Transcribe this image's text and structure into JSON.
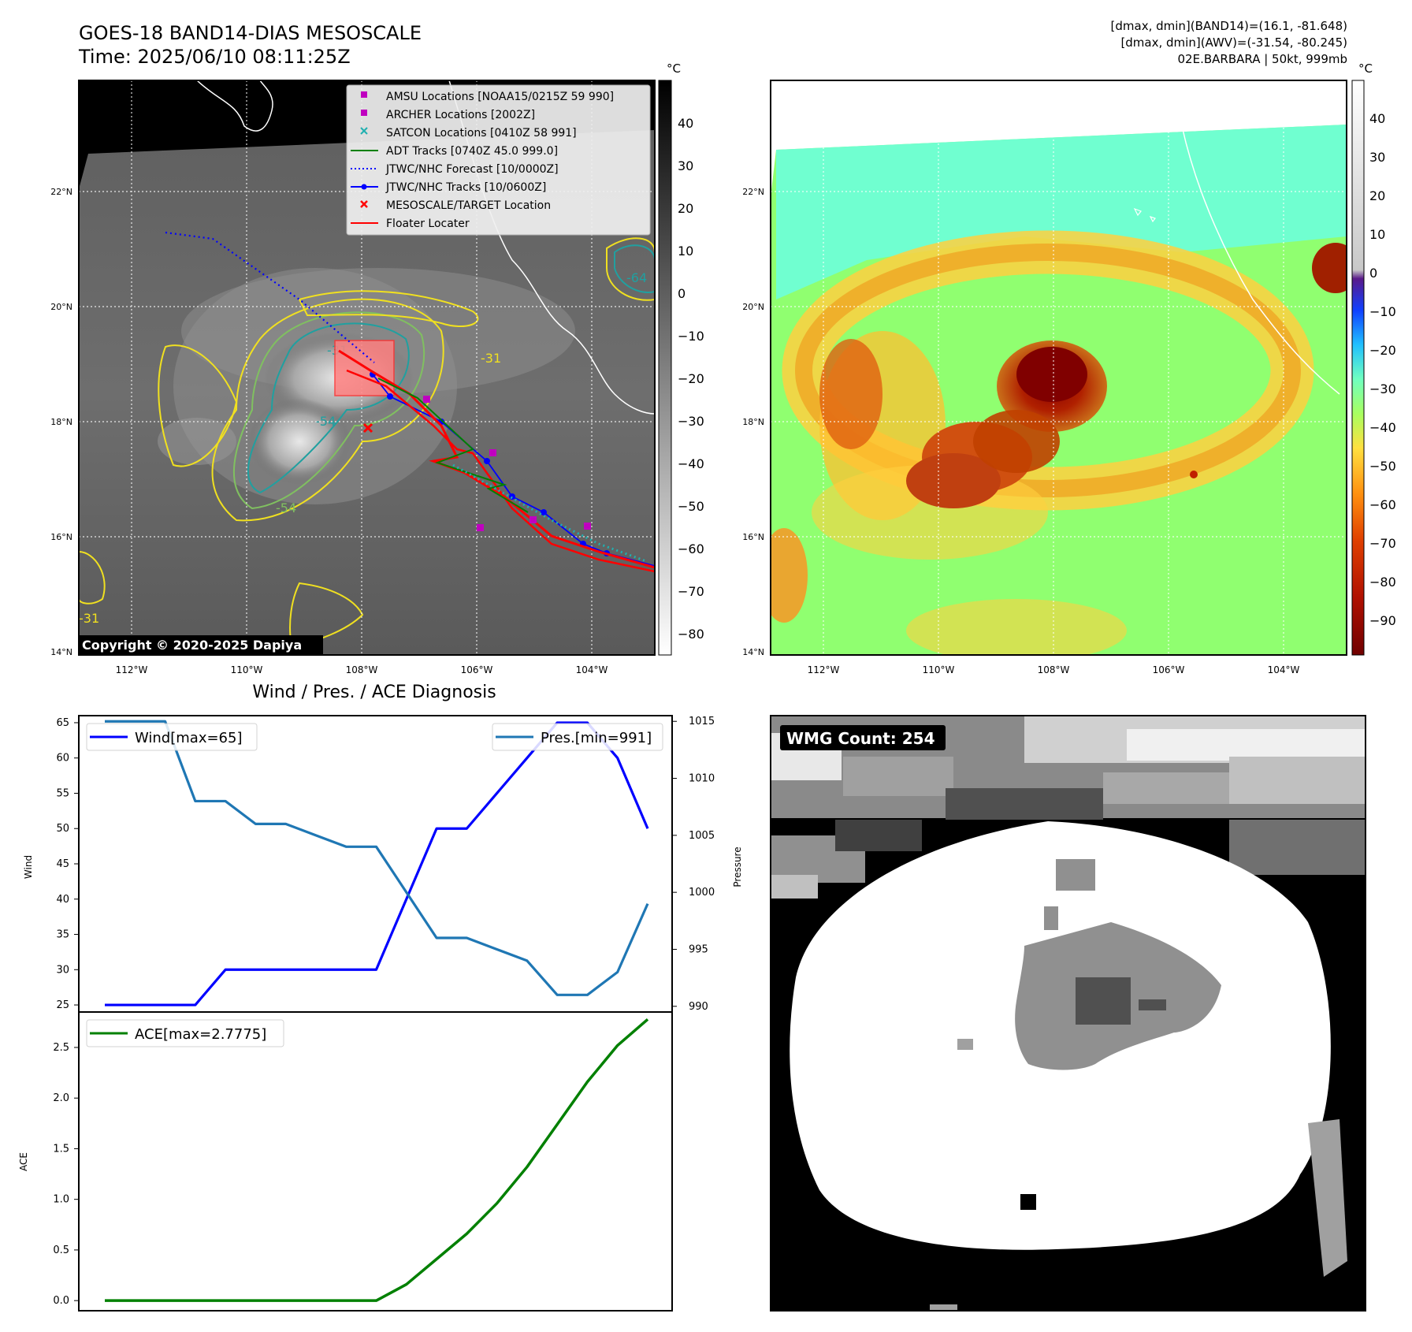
{
  "header": {
    "title_line1": "GOES-18 BAND14-DIAS MESOSCALE",
    "title_line2": "Time: 2025/06/10 08:11:25Z",
    "info_line1": "[dmax, dmin](BAND14)=(16.1, -81.648)",
    "info_line2": "[dmax, dmin](AWV)=(-31.54, -80.245)",
    "info_line3": "02E.BARBARA | 50kt, 999mb"
  },
  "map_axes": {
    "lon_ticks": [
      "112°W",
      "110°W",
      "108°W",
      "106°W",
      "104°W"
    ],
    "lat_ticks": [
      "22°N",
      "20°N",
      "18°N",
      "16°N",
      "14°N"
    ]
  },
  "colorbar_left": {
    "unit": "°C",
    "ticks": [
      "40",
      "30",
      "20",
      "10",
      "0",
      "−10",
      "−20",
      "−30",
      "−40",
      "−50",
      "−60",
      "−70",
      "−80"
    ]
  },
  "colorbar_right": {
    "unit": "°C",
    "ticks": [
      "40",
      "30",
      "20",
      "10",
      "0",
      "−10",
      "−20",
      "−30",
      "−40",
      "−50",
      "−60",
      "−70",
      "−80",
      "−90"
    ]
  },
  "copyright": "Copyright © 2020-2025 Dapiya",
  "contour_labels": [
    "-31",
    "-54",
    "-64",
    "-31",
    "-54",
    "-31"
  ],
  "legend": [
    {
      "label": "AMSU Locations [NOAA15/0215Z 59 990]",
      "color": "#c000c0",
      "marker": "square"
    },
    {
      "label": "ARCHER Locations [2002Z]",
      "color": "#c000c0",
      "marker": "square"
    },
    {
      "label": "SATCON Locations [0410Z 58 991]",
      "color": "#20b0b0",
      "marker": "x"
    },
    {
      "label": "ADT Tracks [0740Z 45.0 999.0]",
      "color": "#008000",
      "marker": "line"
    },
    {
      "label": "JTWC/NHC Forecast [10/0000Z]",
      "color": "#0000ff",
      "marker": "dotted"
    },
    {
      "label": "JTWC/NHC Tracks [10/0600Z]",
      "color": "#0000ff",
      "marker": "line-dot"
    },
    {
      "label": "MESOSCALE/TARGET Location",
      "color": "#ff0000",
      "marker": "x"
    },
    {
      "label": "Floater Locater",
      "color": "#ff0000",
      "marker": "line"
    }
  ],
  "diag_title": "Wind / Pres. / ACE Diagnosis",
  "wmg_label": "WMG Count: 254",
  "chart_data": [
    {
      "type": "line",
      "title": "Wind / Pres. / ACE Diagnosis",
      "ylabel": "Wind",
      "y2label": "Pressure",
      "x": [
        0,
        1,
        2,
        3,
        4,
        5,
        6,
        7,
        8,
        9,
        10,
        11,
        12,
        13,
        14,
        15,
        16,
        17,
        18
      ],
      "ylim": [
        24,
        66
      ],
      "y2lim": [
        989.5,
        1015.5
      ],
      "yticks": [
        25,
        30,
        35,
        40,
        45,
        50,
        55,
        60,
        65
      ],
      "y2ticks": [
        990,
        995,
        1000,
        1005,
        1010,
        1015
      ],
      "legend_wind": "Wind[max=65]",
      "legend_pres": "Pres.[min=991]",
      "series": [
        {
          "name": "Wind[max=65]",
          "axis": "left",
          "color": "#0000ff",
          "values": [
            25,
            25,
            25,
            25,
            30,
            30,
            30,
            30,
            30,
            30,
            40,
            50,
            50,
            55,
            60,
            65,
            65,
            60,
            50
          ]
        },
        {
          "name": "Pres.[min=991]",
          "axis": "right",
          "color": "#1f77b4",
          "values": [
            1015,
            1015,
            1015,
            1008,
            1008,
            1006,
            1006,
            1005,
            1004,
            1004,
            1000,
            996,
            996,
            995,
            994,
            991,
            991,
            993,
            999
          ]
        }
      ]
    },
    {
      "type": "line",
      "ylabel": "ACE",
      "x": [
        0,
        1,
        2,
        3,
        4,
        5,
        6,
        7,
        8,
        9,
        10,
        11,
        12,
        13,
        14,
        15,
        16,
        17,
        18
      ],
      "ylim": [
        -0.1,
        2.85
      ],
      "yticks": [
        0.0,
        0.5,
        1.0,
        1.5,
        2.0,
        2.5
      ],
      "legend_ace": "ACE[max=2.7775]",
      "series": [
        {
          "name": "ACE[max=2.7775]",
          "color": "#008000",
          "values": [
            0,
            0,
            0,
            0,
            0,
            0,
            0,
            0,
            0,
            0,
            0.16,
            0.41,
            0.66,
            0.96,
            1.32,
            1.74,
            2.16,
            2.52,
            2.7775
          ]
        }
      ]
    }
  ]
}
